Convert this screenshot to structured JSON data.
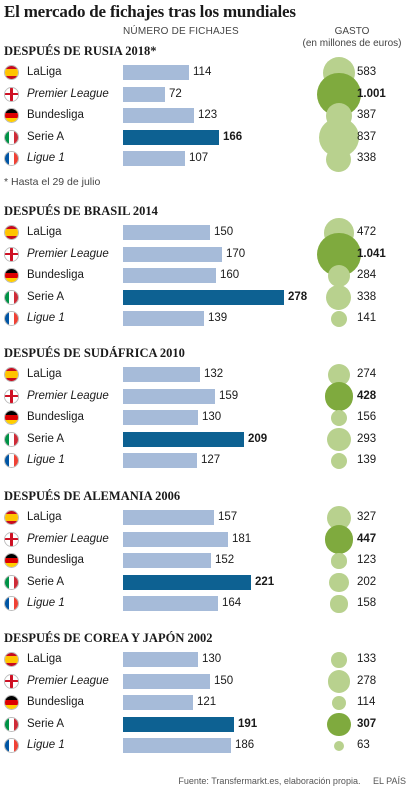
{
  "title": "El mercado de fichajes tras los mundiales",
  "headers": {
    "count": "NÚMERO DE FICHAJES",
    "spend_line1": "GASTO",
    "spend_line2": "(en millones de euros)"
  },
  "colors": {
    "bar": "#a6bbd9",
    "bar_highlight": "#0d6192",
    "bubble": "#b8d18e",
    "bubble_highlight": "#7faa3e"
  },
  "leagues": [
    {
      "name": "LaLiga",
      "italic": false,
      "flag": "spain-flag-icon"
    },
    {
      "name": "Premier League",
      "italic": true,
      "flag": "england-flag-icon"
    },
    {
      "name": "Bundesliga",
      "italic": false,
      "flag": "germany-flag-icon"
    },
    {
      "name": "Serie A",
      "italic": false,
      "flag": "italy-flag-icon"
    },
    {
      "name": "Ligue 1",
      "italic": true,
      "flag": "france-flag-icon"
    }
  ],
  "chart_data": [
    {
      "type": "bar",
      "title": "DESPUÉS DE RUSIA 2018*",
      "categories": [
        "LaLiga",
        "Premier League",
        "Bundesliga",
        "Serie A",
        "Ligue 1"
      ],
      "count_values": [
        114,
        72,
        123,
        166,
        107
      ],
      "spend_values": [
        583,
        1001,
        387,
        837,
        338
      ],
      "spend_labels": [
        "583",
        "1.001",
        "387",
        "837",
        "338"
      ],
      "count_highlight": 3,
      "spend_highlight": 1,
      "footnote": "* Hasta el 29 de julio"
    },
    {
      "type": "bar",
      "title": "DESPUÉS DE BRASIL 2014",
      "categories": [
        "LaLiga",
        "Premier League",
        "Bundesliga",
        "Serie A",
        "Ligue 1"
      ],
      "count_values": [
        150,
        170,
        160,
        278,
        139
      ],
      "spend_values": [
        472,
        1041,
        284,
        338,
        141
      ],
      "spend_labels": [
        "472",
        "1.041",
        "284",
        "338",
        "141"
      ],
      "count_highlight": 3,
      "spend_highlight": 1
    },
    {
      "type": "bar",
      "title": "DESPUÉS DE SUDÁFRICA 2010",
      "categories": [
        "LaLiga",
        "Premier League",
        "Bundesliga",
        "Serie A",
        "Ligue 1"
      ],
      "count_values": [
        132,
        159,
        130,
        209,
        127
      ],
      "spend_values": [
        274,
        428,
        156,
        293,
        139
      ],
      "spend_labels": [
        "274",
        "428",
        "156",
        "293",
        "139"
      ],
      "count_highlight": 3,
      "spend_highlight": 1
    },
    {
      "type": "bar",
      "title": "DESPUÉS DE ALEMANIA 2006",
      "categories": [
        "LaLiga",
        "Premier League",
        "Bundesliga",
        "Serie A",
        "Ligue 1"
      ],
      "count_values": [
        157,
        181,
        152,
        221,
        164
      ],
      "spend_values": [
        327,
        447,
        123,
        202,
        158
      ],
      "spend_labels": [
        "327",
        "447",
        "123",
        "202",
        "158"
      ],
      "count_highlight": 3,
      "spend_highlight": 1
    },
    {
      "type": "bar",
      "title": "DESPUÉS DE COREA Y JAPÓN 2002",
      "categories": [
        "LaLiga",
        "Premier League",
        "Bundesliga",
        "Serie A",
        "Ligue 1"
      ],
      "count_values": [
        130,
        150,
        121,
        191,
        186
      ],
      "spend_values": [
        133,
        278,
        114,
        307,
        63
      ],
      "spend_labels": [
        "133",
        "278",
        "114",
        "307",
        "63"
      ],
      "count_highlight": 3,
      "spend_highlight": 3
    }
  ],
  "source": "Fuente: Transfermarkt.es, elaboración propia.",
  "publisher": "EL PAÍS"
}
